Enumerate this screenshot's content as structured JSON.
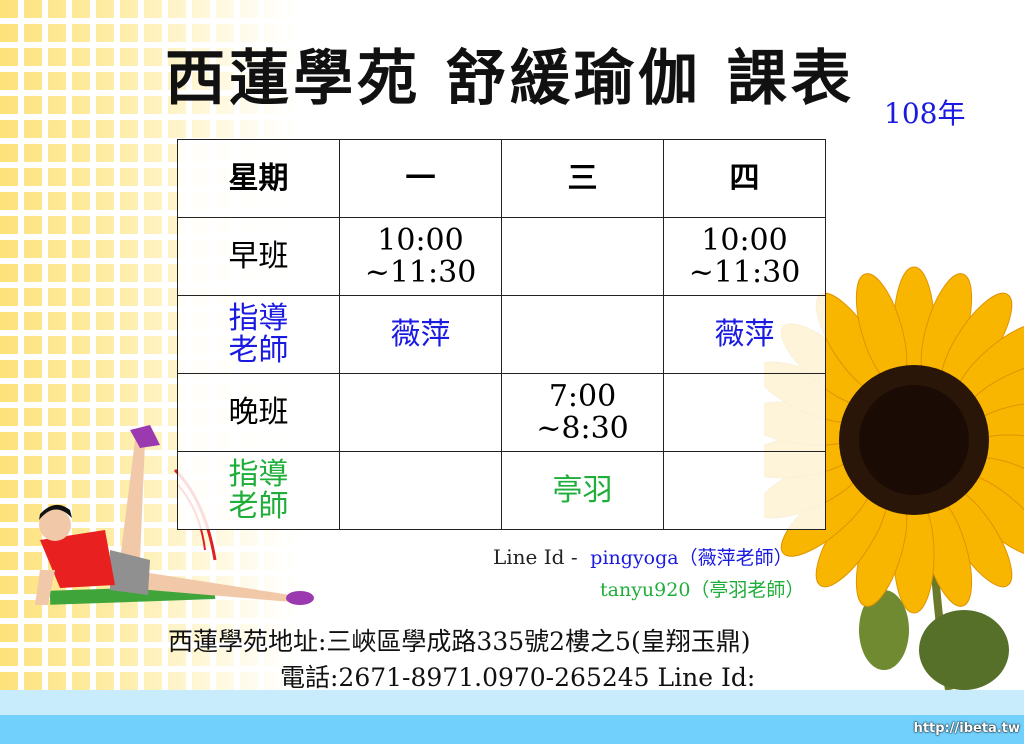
{
  "title": "西蓮學苑 舒緩瑜伽 課表",
  "year": "108年",
  "table": {
    "header": [
      "星期",
      "一",
      "三",
      "四"
    ],
    "rows": [
      {
        "label": "早班",
        "cells": [
          "10:00\n~11:30",
          "",
          "10:00\n~11:30"
        ]
      },
      {
        "label": "指導\n老師",
        "cells": [
          "薇萍",
          "",
          "薇萍"
        ]
      },
      {
        "label": "晚班",
        "cells": [
          "",
          "7:00\n~8:30",
          ""
        ]
      },
      {
        "label": "指導\n老師",
        "cells": [
          "",
          "亭羽",
          ""
        ]
      }
    ]
  },
  "line": {
    "prefix": "Line Id -",
    "id1": "pingyoga（薇萍老師）",
    "id2": "tanyu920（亭羽老師）"
  },
  "address": "西蓮學苑地址:三峽區學成路335號2樓之5(皇翔玉鼎)",
  "phone": "電話:2671-8971.0970-265245 Line Id:",
  "watermark": "http://ibeta.tw",
  "colors": {
    "blue": "#1a1ae0",
    "green": "#1fae3a",
    "band_light": "#c8ecfc",
    "band": "#72d0fc"
  }
}
